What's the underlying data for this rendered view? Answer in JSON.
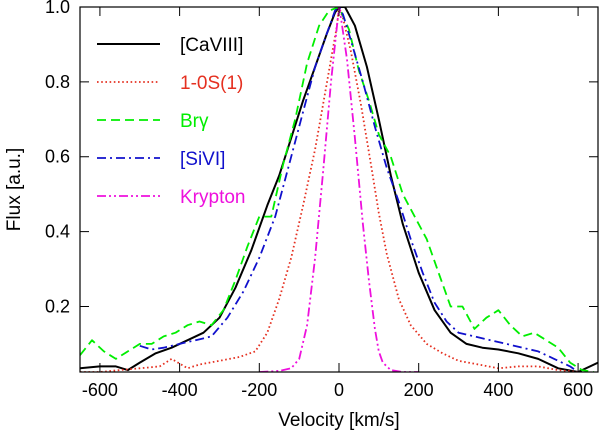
{
  "chart_data": {
    "type": "line",
    "title": "",
    "xlabel": "Velocity [km/s]",
    "ylabel": "Flux [a.u.]",
    "xlim": [
      -650,
      650
    ],
    "ylim": [
      0.025,
      1.0
    ],
    "x_ticks": [
      -600,
      -400,
      -200,
      0,
      200,
      400,
      600
    ],
    "x_tick_labels": [
      "-600",
      "-400",
      "-200",
      "0",
      "200",
      "400",
      "600"
    ],
    "y_ticks": [
      0.2,
      0.4,
      0.6,
      0.8,
      1.0
    ],
    "y_tick_labels": [
      "0.2",
      "0.4",
      "0.6",
      "0.8",
      "1.0"
    ],
    "grid": false,
    "legend_position": "top-left",
    "series": [
      {
        "name": "[CaVIII]",
        "color": "#000000",
        "style": "solid",
        "x": [
          -650,
          -600,
          -560,
          -530,
          -500,
          -460,
          -420,
          -380,
          -340,
          -300,
          -260,
          -220,
          -180,
          -150,
          -120,
          -90,
          -60,
          -30,
          -10,
          0,
          15,
          40,
          70,
          100,
          130,
          160,
          200,
          240,
          280,
          320,
          360,
          400,
          450,
          500,
          550,
          600,
          650
        ],
        "y": [
          0.035,
          0.04,
          0.04,
          0.03,
          0.05,
          0.075,
          0.09,
          0.11,
          0.13,
          0.17,
          0.25,
          0.35,
          0.47,
          0.55,
          0.65,
          0.75,
          0.84,
          0.93,
          0.985,
          1.0,
          1.0,
          0.95,
          0.84,
          0.7,
          0.55,
          0.42,
          0.29,
          0.19,
          0.13,
          0.1,
          0.09,
          0.085,
          0.075,
          0.06,
          0.035,
          0.025,
          0.05
        ]
      },
      {
        "name": "1-0S(1)",
        "color": "#e53020",
        "style": "dotted",
        "x": [
          -650,
          -600,
          -550,
          -500,
          -450,
          -420,
          -380,
          -350,
          -300,
          -250,
          -210,
          -180,
          -150,
          -120,
          -90,
          -60,
          -40,
          -20,
          -5,
          0,
          10,
          30,
          55,
          80,
          100,
          120,
          150,
          180,
          220,
          260,
          300,
          350,
          400,
          450,
          500,
          550,
          600
        ],
        "y": [
          0.025,
          0.025,
          0.03,
          0.035,
          0.04,
          0.06,
          0.035,
          0.045,
          0.055,
          0.065,
          0.08,
          0.13,
          0.22,
          0.33,
          0.47,
          0.62,
          0.74,
          0.86,
          0.95,
          1.0,
          0.97,
          0.88,
          0.74,
          0.58,
          0.45,
          0.34,
          0.22,
          0.15,
          0.1,
          0.075,
          0.055,
          0.045,
          0.035,
          0.04,
          0.04,
          0.03,
          0.025
        ]
      },
      {
        "name": "Brγ",
        "color": "#00ee00",
        "style": "dashed",
        "x": [
          -650,
          -620,
          -590,
          -560,
          -530,
          -500,
          -470,
          -440,
          -410,
          -380,
          -350,
          -320,
          -290,
          -260,
          -230,
          -200,
          -170,
          -140,
          -110,
          -80,
          -50,
          -25,
          0,
          25,
          50,
          75,
          100,
          130,
          160,
          190,
          220,
          250,
          280,
          310,
          340,
          370,
          400,
          430,
          460,
          490,
          520,
          550,
          580,
          610,
          640
        ],
        "y": [
          0.07,
          0.11,
          0.08,
          0.06,
          0.08,
          0.1,
          0.1,
          0.12,
          0.13,
          0.15,
          0.16,
          0.15,
          0.19,
          0.27,
          0.36,
          0.44,
          0.44,
          0.58,
          0.7,
          0.85,
          0.95,
          0.99,
          1.0,
          0.94,
          0.83,
          0.75,
          0.66,
          0.6,
          0.5,
          0.44,
          0.38,
          0.29,
          0.2,
          0.2,
          0.14,
          0.17,
          0.19,
          0.15,
          0.12,
          0.13,
          0.11,
          0.09,
          0.05,
          0.03,
          0.025
        ]
      },
      {
        "name": "[SiVI]",
        "color": "#1010cc",
        "style": "dash-dot",
        "x": [
          -500,
          -470,
          -440,
          -400,
          -360,
          -320,
          -280,
          -240,
          -200,
          -160,
          -120,
          -90,
          -60,
          -30,
          -10,
          0,
          10,
          30,
          60,
          90,
          120,
          150,
          180,
          210,
          240,
          270,
          300,
          340,
          380,
          420,
          460,
          500,
          540,
          580,
          600
        ],
        "y": [
          0.095,
          0.085,
          0.09,
          0.1,
          0.11,
          0.12,
          0.17,
          0.24,
          0.33,
          0.44,
          0.6,
          0.72,
          0.84,
          0.93,
          0.99,
          1.0,
          0.98,
          0.91,
          0.8,
          0.68,
          0.57,
          0.48,
          0.38,
          0.29,
          0.21,
          0.16,
          0.13,
          0.12,
          0.11,
          0.1,
          0.09,
          0.08,
          0.06,
          0.04,
          0.025
        ]
      },
      {
        "name": "Krypton",
        "color": "#ee10dd",
        "style": "dash-dot-dot",
        "x": [
          -200,
          -150,
          -120,
          -100,
          -80,
          -60,
          -40,
          -20,
          -5,
          0,
          5,
          20,
          40,
          60,
          75,
          90,
          100,
          110,
          130,
          160,
          200
        ],
        "y": [
          0.025,
          0.028,
          0.035,
          0.06,
          0.15,
          0.33,
          0.56,
          0.8,
          0.95,
          1.0,
          0.97,
          0.86,
          0.65,
          0.42,
          0.27,
          0.14,
          0.08,
          0.05,
          0.03,
          0.025,
          0.025
        ]
      }
    ]
  }
}
